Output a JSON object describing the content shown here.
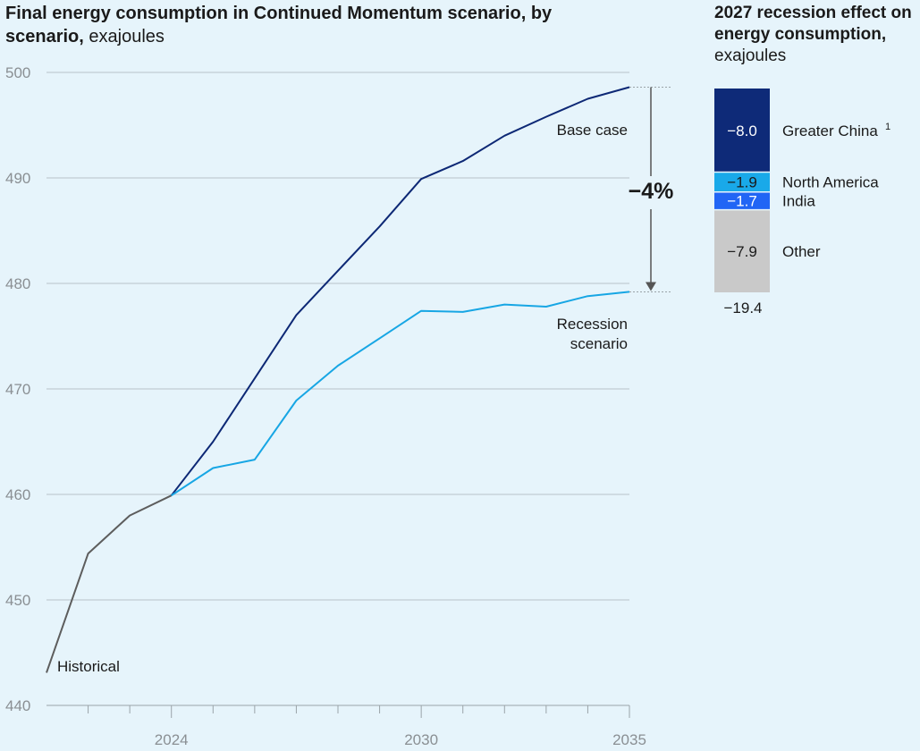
{
  "title": {
    "bold": "Final energy consumption in Continued Momentum scenario, by scenario,",
    "unit": " exajoules"
  },
  "right_title": {
    "bold": "2027 recession effect on energy consumption,",
    "unit": " exajoules"
  },
  "colors": {
    "base_case": "#0d2875",
    "recession": "#17a6e4",
    "historical": "#5d5d5d",
    "greater_china": "#0e2a78",
    "north_america": "#19a9e9",
    "india": "#2165f5",
    "other": "#c9c9c9",
    "grid": "#b8c2c8"
  },
  "chart_data": [
    {
      "type": "line",
      "title": "Final energy consumption in Continued Momentum scenario, by scenario",
      "ylabel": "exajoules",
      "xlabel": "",
      "ylim": [
        440,
        500
      ],
      "xlim": [
        2021,
        2035
      ],
      "y_ticks": [
        440,
        450,
        460,
        470,
        480,
        490,
        500
      ],
      "x_ticks": [
        2024,
        2030,
        2035
      ],
      "series": [
        {
          "name": "Historical",
          "x": [
            2021,
            2022,
            2023,
            2024
          ],
          "values": [
            443.1,
            454.4,
            458.0,
            459.9
          ]
        },
        {
          "name": "Base case",
          "x": [
            2024,
            2025,
            2026,
            2027,
            2028,
            2029,
            2030,
            2031,
            2032,
            2033,
            2034,
            2035
          ],
          "values": [
            459.9,
            465.0,
            471.0,
            477.0,
            481.2,
            485.4,
            489.9,
            491.6,
            494.0,
            495.8,
            497.5,
            498.6
          ]
        },
        {
          "name": "Recession scenario",
          "x": [
            2024,
            2025,
            2026,
            2027,
            2028,
            2029,
            2030,
            2031,
            2032,
            2033,
            2034,
            2035
          ],
          "values": [
            459.9,
            462.5,
            463.3,
            468.9,
            472.2,
            474.8,
            477.4,
            477.3,
            478.0,
            477.8,
            478.8,
            479.2
          ]
        }
      ],
      "labels": {
        "base_case": "Base case",
        "recession_line1": "Recession",
        "recession_line2": "scenario",
        "historical": "Historical",
        "difference": "−4%"
      }
    },
    {
      "type": "bar",
      "stacked": true,
      "title": "2027 recession effect on energy consumption, exajoules",
      "categories": [
        "Greater China",
        "North America",
        "India",
        "Other"
      ],
      "category_labels": [
        "Greater China",
        "North America",
        "India",
        "Other"
      ],
      "value_labels": [
        "−8.0",
        "−1.9",
        "−1.7",
        "−7.9"
      ],
      "values": [
        -8.0,
        -1.9,
        -1.7,
        -7.9
      ],
      "footnote_marker": "1",
      "total": -19.4,
      "total_label": "−19.4"
    }
  ]
}
